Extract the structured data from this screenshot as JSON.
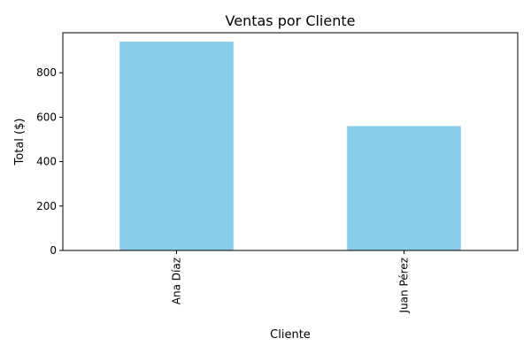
{
  "chart_data": {
    "type": "bar",
    "title": "Ventas por Cliente",
    "xlabel": "Cliente",
    "ylabel": "Total ($)",
    "categories": [
      "Ana Díaz",
      "Juan Pérez"
    ],
    "values": [
      940,
      560
    ],
    "ylim": [
      0,
      980
    ],
    "yticks": [
      0,
      200,
      400,
      600,
      800
    ],
    "bar_color": "#87CEEB",
    "grid": false,
    "legend": "none"
  }
}
